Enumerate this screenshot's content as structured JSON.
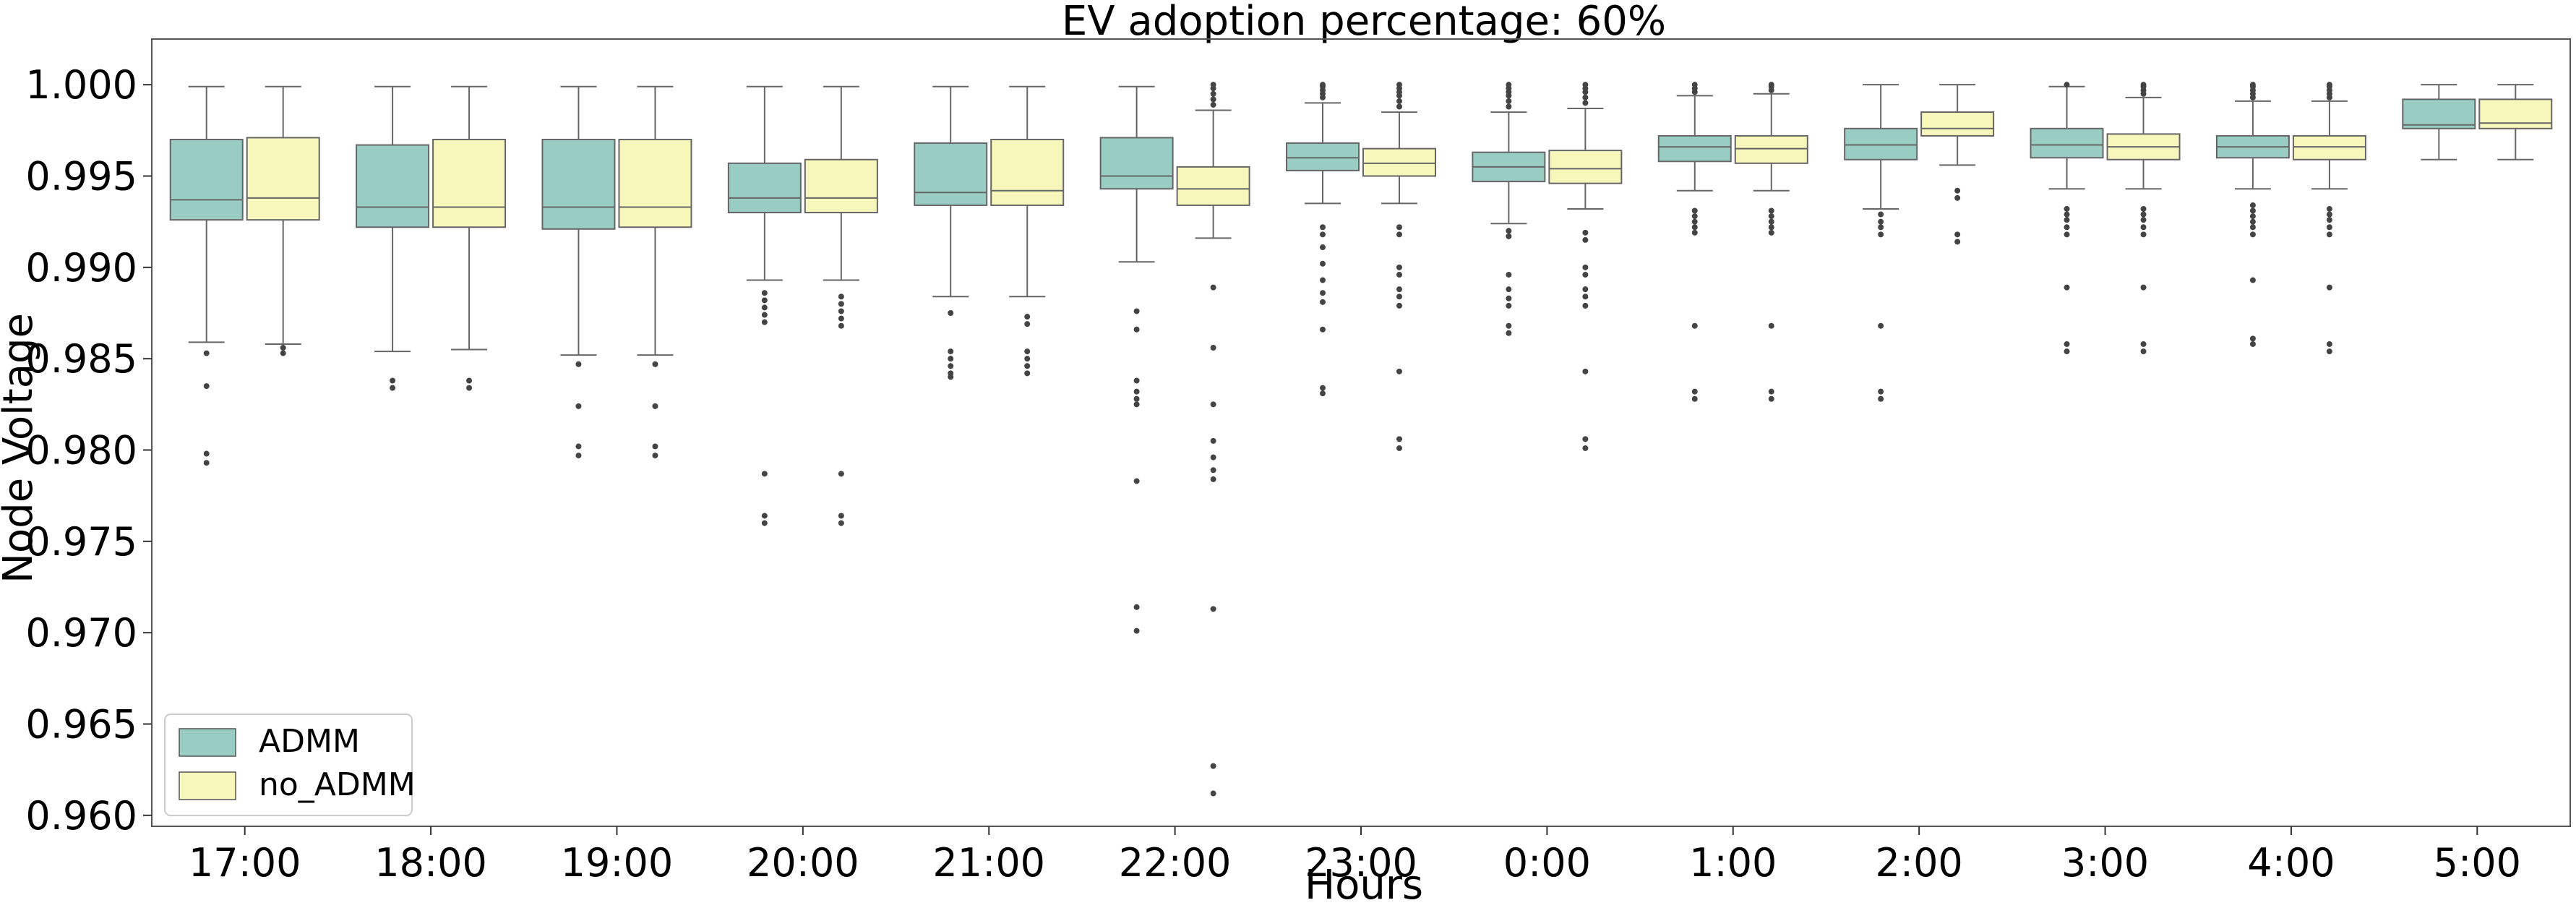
{
  "chart_data": {
    "type": "boxplot",
    "title": "EV adoption percentage: 60%",
    "xlabel": "Hours",
    "ylabel": "Node Voltage",
    "ylim": [
      0.9594,
      1.0025
    ],
    "yticks": [
      0.96,
      0.965,
      0.97,
      0.975,
      0.98,
      0.985,
      0.99,
      0.995,
      1.0
    ],
    "ytick_labels": [
      "0.960",
      "0.965",
      "0.970",
      "0.975",
      "0.980",
      "0.985",
      "0.990",
      "0.995",
      "1.000"
    ],
    "grid": false,
    "legend_position": "lower-left",
    "categories": [
      "17:00",
      "18:00",
      "19:00",
      "20:00",
      "21:00",
      "22:00",
      "23:00",
      "0:00",
      "1:00",
      "2:00",
      "3:00",
      "4:00",
      "5:00"
    ],
    "series": [
      {
        "name": "ADMM",
        "color": "#99cdc3",
        "boxes": [
          {
            "whislo": 0.9859,
            "q1": 0.9926,
            "med": 0.9937,
            "q3": 0.997,
            "whishi": 0.9999,
            "fliers": [
              0.9853,
              0.9835,
              0.9798,
              0.9793
            ]
          },
          {
            "whislo": 0.9854,
            "q1": 0.9922,
            "med": 0.9933,
            "q3": 0.9967,
            "whishi": 0.9999,
            "fliers": [
              0.9838,
              0.9834
            ]
          },
          {
            "whislo": 0.9852,
            "q1": 0.9921,
            "med": 0.9933,
            "q3": 0.997,
            "whishi": 0.9999,
            "fliers": [
              0.9847,
              0.9824,
              0.9802,
              0.9797
            ]
          },
          {
            "whislo": 0.9893,
            "q1": 0.993,
            "med": 0.9938,
            "q3": 0.9957,
            "whishi": 0.9999,
            "fliers": [
              0.9886,
              0.9882,
              0.9878,
              0.9874,
              0.987,
              0.9787,
              0.9764,
              0.976
            ]
          },
          {
            "whislo": 0.9884,
            "q1": 0.9934,
            "med": 0.9941,
            "q3": 0.9968,
            "whishi": 0.9999,
            "fliers": [
              0.9875,
              0.9854,
              0.985,
              0.9846,
              0.9842,
              0.984
            ]
          },
          {
            "whislo": 0.9903,
            "q1": 0.9943,
            "med": 0.995,
            "q3": 0.9971,
            "whishi": 0.9999,
            "fliers": [
              0.9876,
              0.9866,
              0.9838,
              0.9832,
              0.9828,
              0.9825,
              0.9783,
              0.9714,
              0.9701
            ]
          },
          {
            "whislo": 0.9935,
            "q1": 0.9953,
            "med": 0.996,
            "q3": 0.9968,
            "whishi": 0.999,
            "fliers": [
              0.9993,
              0.9995,
              0.9997,
              0.9999,
              1.0,
              0.9922,
              0.9918,
              0.9911,
              0.9902,
              0.9893,
              0.9886,
              0.9881,
              0.9866,
              0.9834,
              0.9831
            ]
          },
          {
            "whislo": 0.9924,
            "q1": 0.9947,
            "med": 0.9955,
            "q3": 0.9963,
            "whishi": 0.9985,
            "fliers": [
              0.9988,
              0.9991,
              0.9994,
              0.9996,
              0.9998,
              1.0,
              0.992,
              0.9917,
              0.9896,
              0.9888,
              0.9883,
              0.9879,
              0.9868,
              0.9864
            ]
          },
          {
            "whislo": 0.9942,
            "q1": 0.9958,
            "med": 0.9966,
            "q3": 0.9972,
            "whishi": 0.9994,
            "fliers": [
              0.9996,
              0.9998,
              1.0,
              0.9931,
              0.9928,
              0.9925,
              0.9922,
              0.9919,
              0.9868,
              0.9832,
              0.9828
            ]
          },
          {
            "whislo": 0.9932,
            "q1": 0.9959,
            "med": 0.9967,
            "q3": 0.9976,
            "whishi": 1.0,
            "fliers": [
              0.9929,
              0.9925,
              0.9922,
              0.9918,
              0.9868,
              0.9832,
              0.9828
            ]
          },
          {
            "whislo": 0.9943,
            "q1": 0.996,
            "med": 0.9967,
            "q3": 0.9976,
            "whishi": 0.9999,
            "fliers": [
              1.0,
              0.9932,
              0.9929,
              0.9926,
              0.9922,
              0.9918,
              0.9889,
              0.9858,
              0.9854
            ]
          },
          {
            "whislo": 0.9943,
            "q1": 0.996,
            "med": 0.9966,
            "q3": 0.9972,
            "whishi": 0.9991,
            "fliers": [
              0.9993,
              0.9995,
              0.9997,
              0.9999,
              1.0,
              0.9934,
              0.9931,
              0.9928,
              0.9925,
              0.9922,
              0.9918,
              0.9893,
              0.9861,
              0.9858
            ]
          },
          {
            "whislo": 0.9959,
            "q1": 0.9976,
            "med": 0.9978,
            "q3": 0.9992,
            "whishi": 1.0,
            "fliers": []
          }
        ]
      },
      {
        "name": "no_ADMM",
        "color": "#f8f7bb",
        "boxes": [
          {
            "whislo": 0.9858,
            "q1": 0.9926,
            "med": 0.9938,
            "q3": 0.9971,
            "whishi": 0.9999,
            "fliers": [
              0.9856,
              0.9853
            ]
          },
          {
            "whislo": 0.9855,
            "q1": 0.9922,
            "med": 0.9933,
            "q3": 0.997,
            "whishi": 0.9999,
            "fliers": [
              0.9838,
              0.9834
            ]
          },
          {
            "whislo": 0.9852,
            "q1": 0.9922,
            "med": 0.9933,
            "q3": 0.997,
            "whishi": 0.9999,
            "fliers": [
              0.9847,
              0.9824,
              0.9802,
              0.9797
            ]
          },
          {
            "whislo": 0.9893,
            "q1": 0.993,
            "med": 0.9938,
            "q3": 0.9959,
            "whishi": 0.9999,
            "fliers": [
              0.9884,
              0.988,
              0.9876,
              0.9872,
              0.9868,
              0.9787,
              0.9764,
              0.976
            ]
          },
          {
            "whislo": 0.9884,
            "q1": 0.9934,
            "med": 0.9942,
            "q3": 0.997,
            "whishi": 0.9999,
            "fliers": [
              0.9873,
              0.9869,
              0.9854,
              0.985,
              0.9846,
              0.9842
            ]
          },
          {
            "whislo": 0.9916,
            "q1": 0.9934,
            "med": 0.9943,
            "q3": 0.9955,
            "whishi": 0.9986,
            "fliers": [
              0.9989,
              0.9992,
              0.9995,
              0.9998,
              1.0,
              0.9889,
              0.9856,
              0.9825,
              0.9805,
              0.9796,
              0.9789,
              0.9784,
              0.9713,
              0.9627,
              0.9612
            ]
          },
          {
            "whislo": 0.9935,
            "q1": 0.995,
            "med": 0.9957,
            "q3": 0.9965,
            "whishi": 0.9985,
            "fliers": [
              0.9988,
              0.9991,
              0.9994,
              0.9996,
              0.9998,
              1.0,
              0.9922,
              0.9918,
              0.99,
              0.9896,
              0.9888,
              0.9884,
              0.9879,
              0.9843,
              0.9806,
              0.9801
            ]
          },
          {
            "whislo": 0.9932,
            "q1": 0.9946,
            "med": 0.9954,
            "q3": 0.9964,
            "whishi": 0.9987,
            "fliers": [
              0.999,
              0.9993,
              0.9996,
              0.9998,
              1.0,
              0.9919,
              0.9915,
              0.99,
              0.9896,
              0.9888,
              0.9884,
              0.9879,
              0.9843,
              0.9806,
              0.9801
            ]
          },
          {
            "whislo": 0.9942,
            "q1": 0.9957,
            "med": 0.9965,
            "q3": 0.9972,
            "whishi": 0.9995,
            "fliers": [
              0.9997,
              0.9999,
              1.0,
              0.9931,
              0.9928,
              0.9925,
              0.9922,
              0.9919,
              0.9868,
              0.9832,
              0.9828
            ]
          },
          {
            "whislo": 0.9956,
            "q1": 0.9972,
            "med": 0.9976,
            "q3": 0.9985,
            "whishi": 1.0,
            "fliers": [
              0.9942,
              0.9938,
              0.9918,
              0.9914
            ]
          },
          {
            "whislo": 0.9943,
            "q1": 0.9959,
            "med": 0.9966,
            "q3": 0.9973,
            "whishi": 0.9993,
            "fliers": [
              0.9995,
              0.9997,
              0.9999,
              1.0,
              0.9932,
              0.9929,
              0.9926,
              0.9922,
              0.9918,
              0.9889,
              0.9858,
              0.9854
            ]
          },
          {
            "whislo": 0.9943,
            "q1": 0.9959,
            "med": 0.9966,
            "q3": 0.9972,
            "whishi": 0.9991,
            "fliers": [
              0.9993,
              0.9995,
              0.9997,
              0.9999,
              1.0,
              0.9932,
              0.9929,
              0.9926,
              0.9922,
              0.9918,
              0.9889,
              0.9858,
              0.9854
            ]
          },
          {
            "whislo": 0.9959,
            "q1": 0.9976,
            "med": 0.9979,
            "q3": 0.9992,
            "whishi": 1.0,
            "fliers": []
          }
        ]
      }
    ]
  }
}
